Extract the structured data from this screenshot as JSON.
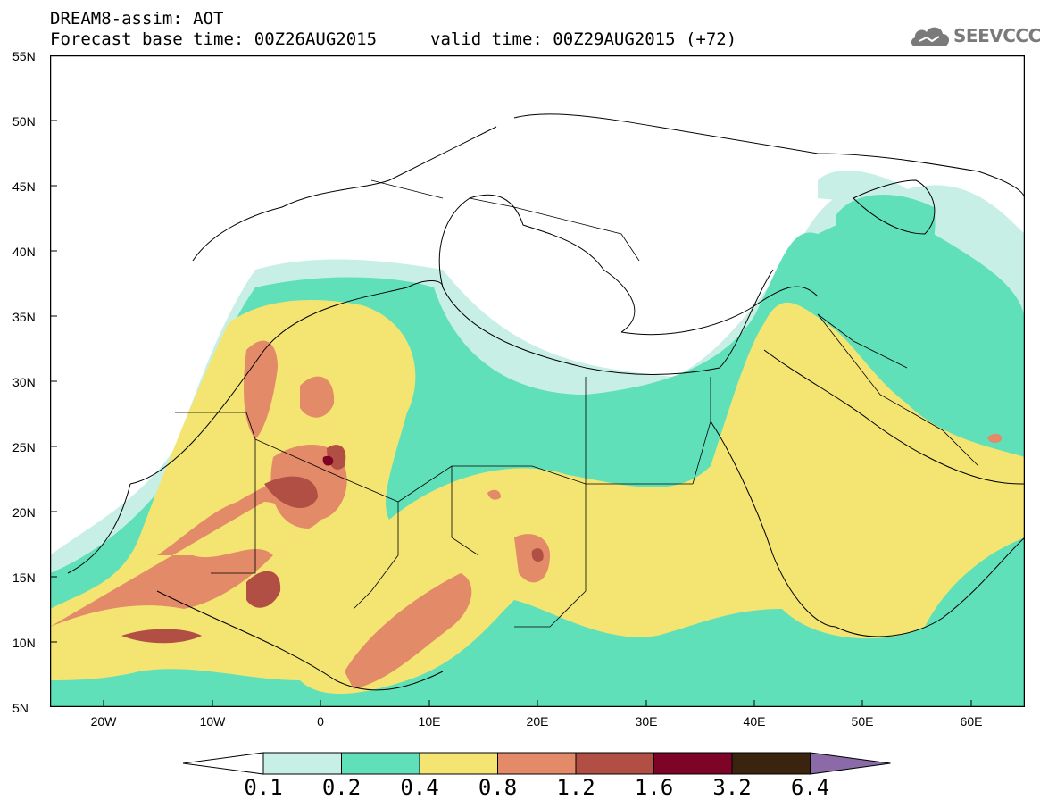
{
  "header": {
    "title_line1": "DREAM8-assim: AOT",
    "title_line2": "Forecast base time: 00Z26AUG2015",
    "valid_time": "valid time: 00Z29AUG2015 (+72)",
    "logo_text": "SEEVCCC"
  },
  "axes": {
    "lat_labels": [
      "55N",
      "50N",
      "45N",
      "40N",
      "35N",
      "30N",
      "25N",
      "20N",
      "15N",
      "10N",
      "5N"
    ],
    "lon_labels": [
      "20W",
      "10W",
      "0",
      "10E",
      "20E",
      "30E",
      "40E",
      "50E",
      "60E"
    ]
  },
  "colorbar": {
    "labels": [
      "0.1",
      "0.2",
      "0.4",
      "0.8",
      "1.2",
      "1.6",
      "3.2",
      "6.4"
    ],
    "colors": [
      "#ffffff",
      "#c8efe6",
      "#5fe0b8",
      "#f4e573",
      "#e38a68",
      "#b14f45",
      "#7d0427",
      "#3a2410",
      "#8b6aa8"
    ]
  }
}
